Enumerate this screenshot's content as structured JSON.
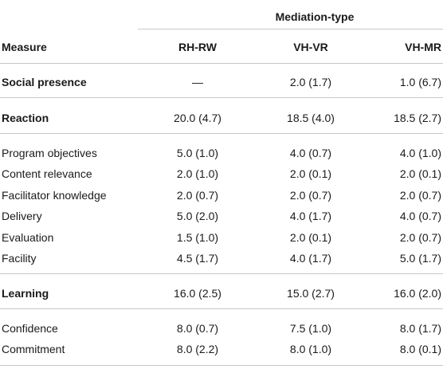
{
  "header": {
    "group_label": "Mediation-type",
    "measure_label": "Measure",
    "columns": [
      "RH-RW",
      "VH-VR",
      "VH-MR"
    ]
  },
  "rows": [
    {
      "label": "Social presence",
      "bold": true,
      "values": [
        "—",
        "2.0 (1.7)",
        "1.0 (6.7)"
      ]
    },
    {
      "label": "Reaction",
      "bold": true,
      "values": [
        "20.0 (4.7)",
        "18.5 (4.0)",
        "18.5 (2.7)"
      ]
    },
    {
      "label": "Program objectives",
      "bold": false,
      "values": [
        "5.0 (1.0)",
        "4.0 (0.7)",
        "4.0 (1.0)"
      ]
    },
    {
      "label": "Content relevance",
      "bold": false,
      "values": [
        "2.0 (1.0)",
        "2.0 (0.1)",
        "2.0 (0.1)"
      ]
    },
    {
      "label": "Facilitator knowledge",
      "bold": false,
      "values": [
        "2.0 (0.7)",
        "2.0 (0.7)",
        "2.0 (0.7)"
      ]
    },
    {
      "label": "Delivery",
      "bold": false,
      "values": [
        "5.0 (2.0)",
        "4.0 (1.7)",
        "4.0 (0.7)"
      ]
    },
    {
      "label": "Evaluation",
      "bold": false,
      "values": [
        "1.5 (1.0)",
        "2.0 (0.1)",
        "2.0 (0.7)"
      ]
    },
    {
      "label": "Facility",
      "bold": false,
      "values": [
        "4.5 (1.7)",
        "4.0 (1.7)",
        "5.0 (1.7)"
      ]
    },
    {
      "label": "Learning",
      "bold": true,
      "values": [
        "16.0 (2.5)",
        "15.0 (2.7)",
        "16.0 (2.0)"
      ]
    },
    {
      "label": "Confidence",
      "bold": false,
      "values": [
        "8.0 (0.7)",
        "7.5 (1.0)",
        "8.0 (1.7)"
      ]
    },
    {
      "label": "Commitment",
      "bold": false,
      "values": [
        "8.0 (2.2)",
        "8.0 (1.0)",
        "8.0 (0.1)"
      ]
    }
  ]
}
